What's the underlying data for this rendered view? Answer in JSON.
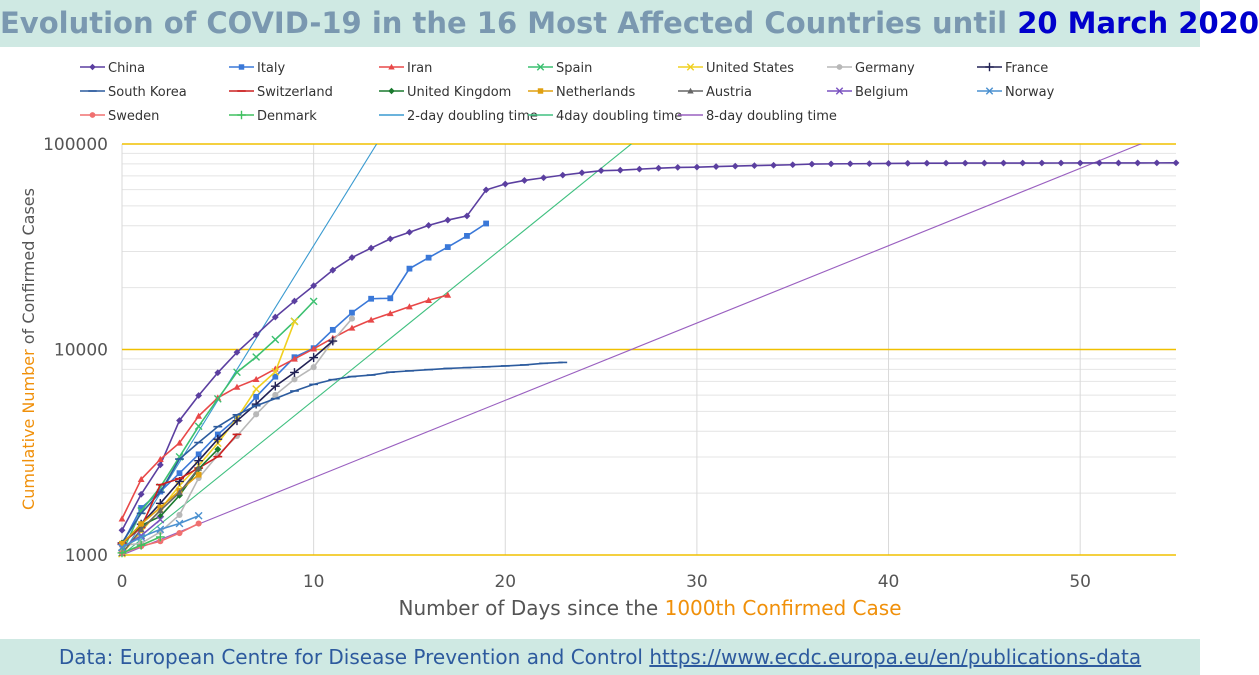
{
  "title": {
    "main": "Evolution of COVID-19 in the 16 Most Affected Countries until",
    "highlight": "20 March 2020",
    "highlight_color": "#0000cc"
  },
  "footer": {
    "text": "Data: European Centre for Disease Prevention and Control",
    "link": "https://www.ecdc.europa.eu/en/publications-data"
  },
  "chart_data": {
    "type": "line",
    "xlabel_main": "Number of Days since the",
    "xlabel_highlight": "1000th Confirmed Case",
    "ylabel_highlight": "Cumulative Number",
    "ylabel_main": "of Confirmed Cases",
    "xlim": [
      0,
      55
    ],
    "ylim": [
      1000,
      100000
    ],
    "yscale": "log",
    "xticks": [
      0,
      10,
      20,
      30,
      40,
      50
    ],
    "yticks": [
      1000,
      10000,
      100000
    ],
    "ytick_labels": [
      "1000",
      "10000",
      "100000"
    ],
    "grid": true,
    "legend_position": "top",
    "series": [
      {
        "name": "China",
        "color": "#5b3fa0",
        "marker": "diamond",
        "values": [
          1320,
          1975,
          2744,
          4515,
          5974,
          7711,
          9692,
          11791,
          14380,
          17205,
          20440,
          24324,
          28018,
          31161,
          34546,
          37198,
          40171,
          42638,
          44653,
          59804,
          63851,
          66492,
          68500,
          70548,
          72436,
          74185,
          74576,
          75465,
          76288,
          76936,
          77150,
          77658,
          78064,
          78497,
          78824,
          79251,
          79824,
          80026,
          80151,
          80270,
          80409,
          80552,
          80651,
          80695,
          80735,
          80754,
          80778,
          80793,
          80813,
          80824,
          80844,
          80860,
          80881,
          80894,
          80928,
          80967
        ]
      },
      {
        "name": "Italy",
        "color": "#3a78d8",
        "marker": "square",
        "values": [
          1128,
          1694,
          2036,
          2502,
          3089,
          3858,
          4636,
          5883,
          7375,
          9172,
          10149,
          12462,
          15113,
          17660,
          17750,
          24747,
          27980,
          31506,
          35713,
          41035
        ]
      },
      {
        "name": "Iran",
        "color": "#e84848",
        "marker": "triangle",
        "values": [
          1501,
          2336,
          2922,
          3513,
          4747,
          5823,
          6566,
          7161,
          8042,
          9000,
          10075,
          11364,
          12729,
          13938,
          14991,
          16169,
          17361,
          18407
        ]
      },
      {
        "name": "Spain",
        "color": "#3cc070",
        "marker": "x",
        "values": [
          1024,
          1639,
          2140,
          3004,
          4231,
          5753,
          7753,
          9191,
          11178,
          13716,
          17147
        ]
      },
      {
        "name": "United States",
        "color": "#f0d020",
        "marker": "x",
        "values": [
          1015,
          1301,
          1663,
          2179,
          2726,
          3499,
          4632,
          6421,
          7786,
          13680
        ]
      },
      {
        "name": "Germany",
        "color": "#b8b8b8",
        "marker": "circle",
        "values": [
          1112,
          1139,
          1296,
          1567,
          2369,
          3062,
          3795,
          4838,
          6012,
          7156,
          8198,
          10999,
          14138
        ]
      },
      {
        "name": "France",
        "color": "#222255",
        "marker": "plus",
        "values": [
          1126,
          1412,
          1784,
          2281,
          2876,
          3661,
          4499,
          5423,
          6633,
          7730,
          9134,
          10995
        ]
      },
      {
        "name": "South Korea",
        "color": "#2c5b9e",
        "marker": "dash",
        "values": [
          1146,
          1595,
          2022,
          2931,
          3526,
          4212,
          4812,
          5328,
          5766,
          6284,
          6767,
          7134,
          7382,
          7513,
          7755,
          7869,
          7979,
          8086,
          8162,
          8236,
          8320,
          8413,
          8565,
          8652
        ]
      },
      {
        "name": "Switzerland",
        "color": "#cc2020",
        "marker": "dash",
        "values": [
          1139,
          1359,
          2200,
          2353,
          2650,
          3010,
          3863
        ]
      },
      {
        "name": "United Kingdom",
        "color": "#1a7a2e",
        "marker": "diamond",
        "values": [
          1144,
          1391,
          1543,
          1950,
          2626,
          3269
        ]
      },
      {
        "name": "Netherlands",
        "color": "#e0a010",
        "marker": "square",
        "values": [
          1135,
          1413,
          1705,
          2051,
          2460
        ]
      },
      {
        "name": "Austria",
        "color": "#666666",
        "marker": "triangle",
        "values": [
          1018,
          1332,
          1646,
          2013,
          2649
        ]
      },
      {
        "name": "Belgium",
        "color": "#7a52c0",
        "marker": "x",
        "values": [
          1085,
          1243,
          1486
        ]
      },
      {
        "name": "Norway",
        "color": "#4a90d0",
        "marker": "x",
        "values": [
          1090,
          1221,
          1333,
          1423,
          1552
        ]
      },
      {
        "name": "Sweden",
        "color": "#f07070",
        "marker": "circle",
        "values": [
          1022,
          1103,
          1167,
          1279,
          1423
        ]
      },
      {
        "name": "Denmark",
        "color": "#40c060",
        "marker": "plus",
        "values": [
          1024,
          1116,
          1225
        ]
      },
      {
        "name": "2-day doubling time",
        "color": "#3a9ad0",
        "marker": "none",
        "doubling_days": 2
      },
      {
        "name": "4day doubling time",
        "color": "#40c080",
        "marker": "none",
        "doubling_days": 4
      },
      {
        "name": "8-day doubling time",
        "color": "#9a60c0",
        "marker": "none",
        "doubling_days": 8
      }
    ]
  }
}
